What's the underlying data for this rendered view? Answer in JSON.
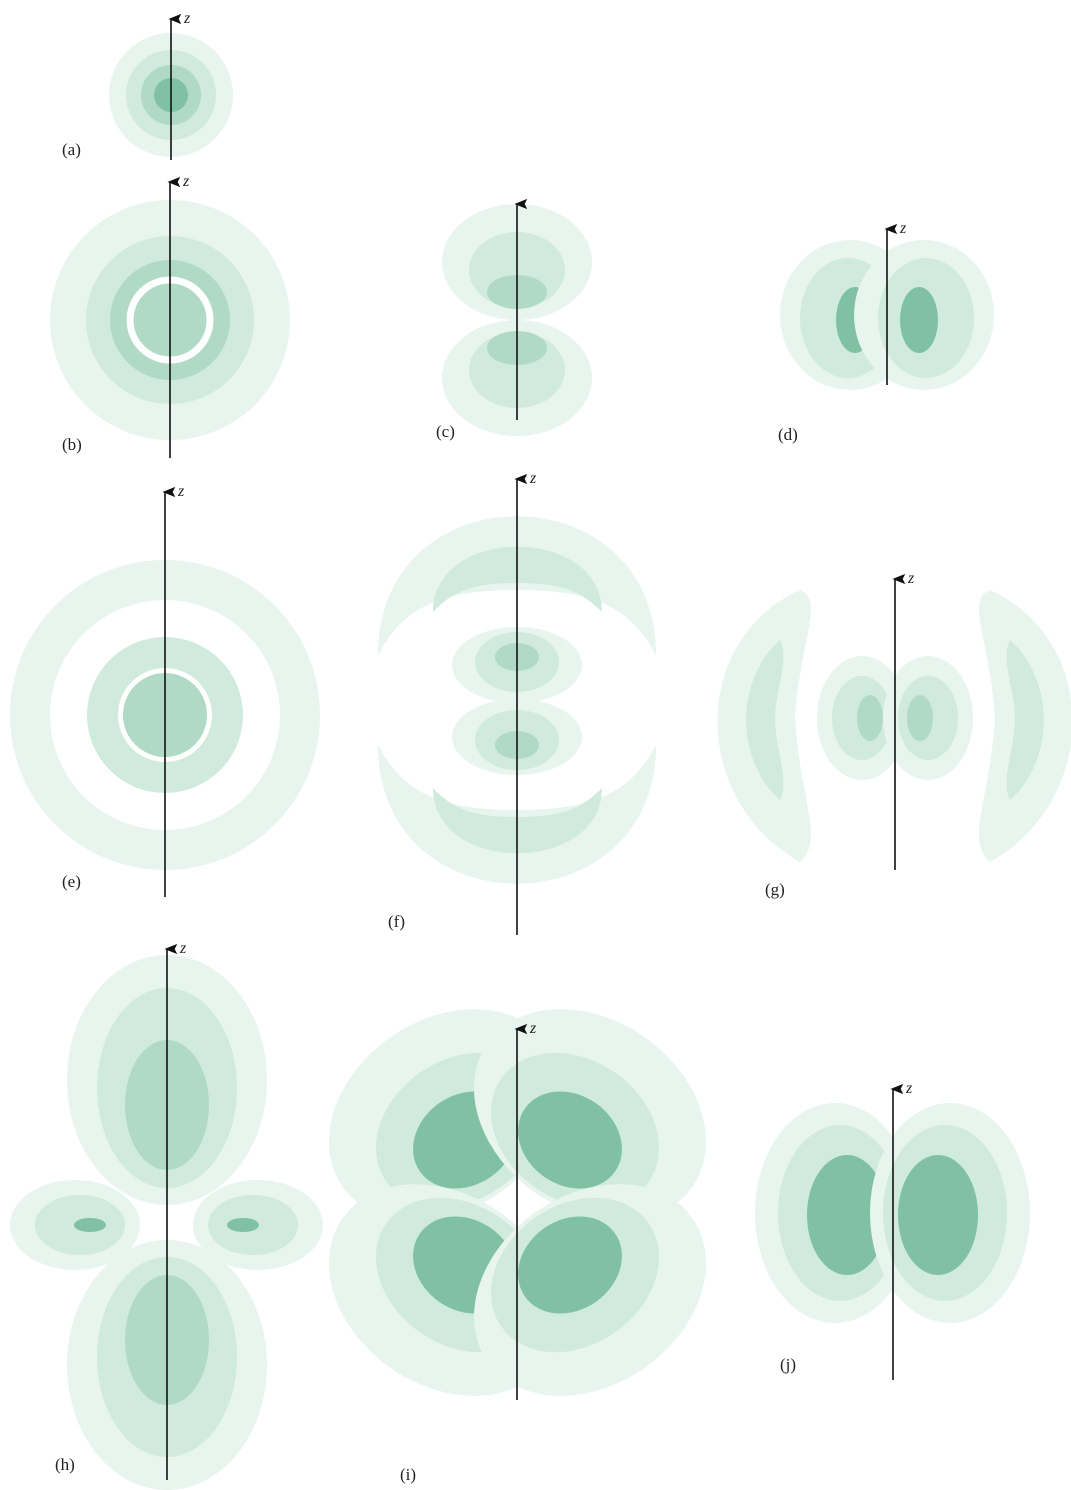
{
  "panels": [
    {
      "label": "(a)",
      "axis_label": "z"
    },
    {
      "label": "(b)",
      "axis_label": "z"
    },
    {
      "label": "(c)"
    },
    {
      "label": "(d)",
      "axis_label": "z"
    },
    {
      "label": "(e)",
      "axis_label": "z"
    },
    {
      "label": "(f)",
      "axis_label": "z"
    },
    {
      "label": "(g)",
      "axis_label": "z"
    },
    {
      "label": "(h)",
      "axis_label": "z"
    },
    {
      "label": "(i)",
      "axis_label": "z"
    },
    {
      "label": "(j)",
      "axis_label": "z"
    }
  ]
}
